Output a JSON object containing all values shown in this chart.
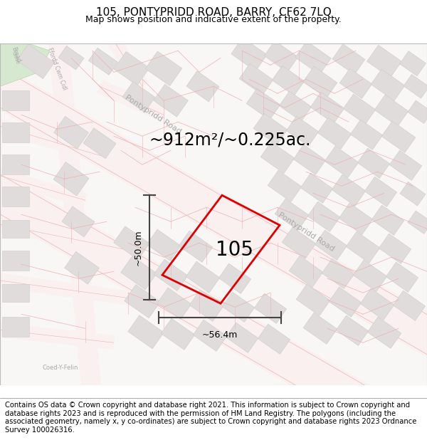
{
  "title_line1": "105, PONTYPRIDD ROAD, BARRY, CF62 7LQ",
  "title_line2": "Map shows position and indicative extent of the property.",
  "footer_text": "Contains OS data © Crown copyright and database right 2021. This information is subject to Crown copyright and database rights 2023 and is reproduced with the permission of HM Land Registry. The polygons (including the associated geometry, namely x, y co-ordinates) are subject to Crown copyright and database rights 2023 Ordnance Survey 100026316.",
  "area_text": "~912m²/~0.225ac.",
  "label_105": "105",
  "dim_width": "~56.4m",
  "dim_height": "~50.0m",
  "map_bg": "#f9f6f6",
  "road_color": "#f2c8c8",
  "road_line_color": "#e8b0b0",
  "building_color": "#e0dcdc",
  "building_edge": "#cccccc",
  "parcel_line_color": "#f0b0b0",
  "green_color": "#d6e8d0",
  "property_color": "#dd0000",
  "dim_color": "#444444",
  "title_fontsize": 11,
  "subtitle_fontsize": 9,
  "footer_fontsize": 7.2,
  "area_fontsize": 17,
  "label_fontsize": 20,
  "dim_fontsize": 9,
  "road_label_fontsize": 8,
  "small_label_fontsize": 5.5
}
